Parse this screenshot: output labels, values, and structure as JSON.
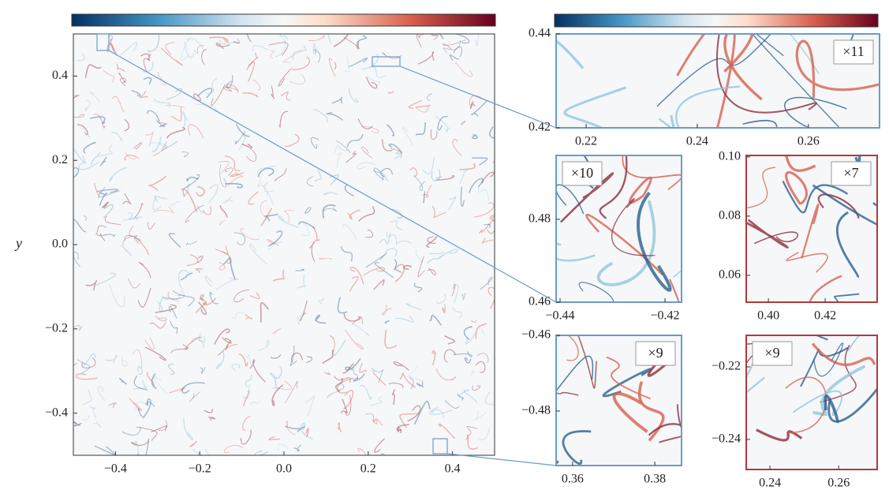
{
  "chart_data": [
    {
      "type": "heatmap",
      "ylabel": "y",
      "frame_color": "#555555",
      "xlim": [
        -0.5,
        0.5
      ],
      "ylim": [
        -0.5,
        0.5
      ],
      "xticks": [
        {
          "value": -0.4,
          "label": "−0.4"
        },
        {
          "value": -0.2,
          "label": "−0.2"
        },
        {
          "value": 0,
          "label": "0.0"
        },
        0.2,
        0.4
      ],
      "yticks": [
        {
          "value": -0.4,
          "label": "−0.4"
        },
        {
          "value": -0.2,
          "label": "−0.2"
        },
        {
          "value": 0,
          "label": "0.0"
        },
        0.2,
        0.4
      ]
    },
    {
      "type": "heatmap",
      "zoom": "×11",
      "frame_color": "#6a9cc9",
      "xlim": [
        0.2146,
        0.2728
      ],
      "ylim": [
        0.42,
        0.44
      ],
      "xticks": [
        0.22,
        0.24,
        0.26
      ],
      "yticks": [
        0.42,
        0.44
      ]
    },
    {
      "type": "heatmap",
      "zoom": "×10",
      "frame_color": "#6a9cc9",
      "xlim": [
        -0.44075,
        -0.41684
      ],
      "ylim": [
        0.46,
        0.4954
      ],
      "xticks": [
        {
          "value": -0.44,
          "label": "−0.44"
        },
        {
          "value": -0.42,
          "label": "−0.42"
        }
      ],
      "yticks": [
        0.46,
        0.48
      ]
    },
    {
      "type": "heatmap",
      "zoom": "×7",
      "frame_color": "#b03a3a",
      "xlim": [
        0.3922,
        0.4383
      ],
      "ylim": [
        0.0509,
        0.1005
      ],
      "xticks": [
        {
          "value": 0.4,
          "label": "0.40"
        },
        0.42
      ],
      "yticks": [
        0.06,
        0.08,
        {
          "value": 0.1,
          "label": "0.10"
        }
      ]
    },
    {
      "type": "heatmap",
      "zoom": "×9",
      "frame_color": "#6a9cc9",
      "xlim": [
        0.356,
        0.3865
      ],
      "ylim": [
        -0.4944,
        -0.46
      ],
      "xticks": [
        0.36,
        0.38
      ],
      "yticks": [
        {
          "value": -0.48,
          "label": "−0.48"
        },
        {
          "value": -0.46,
          "label": "−0.46"
        }
      ]
    },
    {
      "type": "heatmap",
      "zoom": "×9",
      "frame_color": "#b03a3a",
      "xlim": [
        0.2331,
        0.2712
      ],
      "ylim": [
        -0.2483,
        -0.2113
      ],
      "xticks": [
        0.24,
        0.26
      ],
      "yticks": [
        {
          "value": -0.24,
          "label": "−0.24"
        },
        {
          "value": -0.22,
          "label": "−0.22"
        }
      ]
    }
  ]
}
